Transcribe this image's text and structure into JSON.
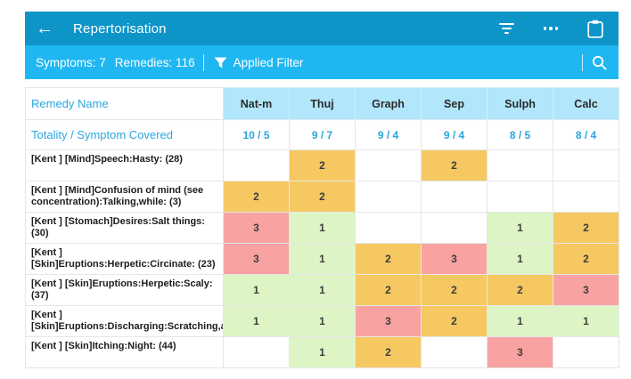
{
  "app_bar": {
    "title": "Repertorisation",
    "back_glyph": "←",
    "icons": [
      "filter-sort-icon",
      "more-options-icon",
      "clipboard-icon"
    ]
  },
  "filter_bar": {
    "symptoms": "Symptoms: 7",
    "remedies": "Remedies: 116",
    "applied_filter": "Applied Filter",
    "icons": [
      "funnel-icon",
      "search-icon"
    ]
  },
  "table": {
    "remedy_name_header": "Remedy Name",
    "totality_label": "Totality / Symptom Covered",
    "remedies": [
      "Nat-m",
      "Thuj",
      "Graph",
      "Sep",
      "Sulph",
      "Calc"
    ],
    "totality": [
      "10 / 5",
      "9 / 7",
      "9 / 4",
      "9 / 4",
      "8 / 5",
      "8 / 4"
    ],
    "rows": [
      {
        "symptom": "[Kent ] [Mind]Speech:Hasty: (28)",
        "grades": [
          "",
          "2",
          "",
          "2",
          "",
          ""
        ]
      },
      {
        "symptom": "[Kent ] [Mind]Confusion of mind (see concentration):Talking,while: (3)",
        "grades": [
          "2",
          "2",
          "",
          "",
          "",
          ""
        ]
      },
      {
        "symptom": "[Kent ] [Stomach]Desires:Salt things: (30)",
        "grades": [
          "3",
          "1",
          "",
          "",
          "1",
          "2"
        ]
      },
      {
        "symptom": "[Kent ] [Skin]Eruptions:Herpetic:Circinate: (23)",
        "grades": [
          "3",
          "1",
          "2",
          "3",
          "1",
          "2"
        ]
      },
      {
        "symptom": "[Kent ] [Skin]Eruptions:Herpetic:Scaly: (37)",
        "grades": [
          "1",
          "1",
          "2",
          "2",
          "2",
          "3"
        ]
      },
      {
        "symptom": "[Kent ] [Skin]Eruptions:Discharging:Scratching,afte...",
        "grades": [
          "1",
          "1",
          "3",
          "2",
          "1",
          "1"
        ]
      },
      {
        "symptom": "[Kent ] [Skin]Itching:Night: (44)",
        "grades": [
          "",
          "1",
          "2",
          "",
          "3",
          ""
        ]
      }
    ]
  },
  "colors": {
    "app_bar": "#0e95c8",
    "filter_bar": "#1fb7f2",
    "header_cell": "#b1e6fb",
    "accent_text": "#2ba7de",
    "grade_1": "#ddf5c5",
    "grade_2": "#f5c862",
    "grade_3": "#f9a2a2"
  }
}
